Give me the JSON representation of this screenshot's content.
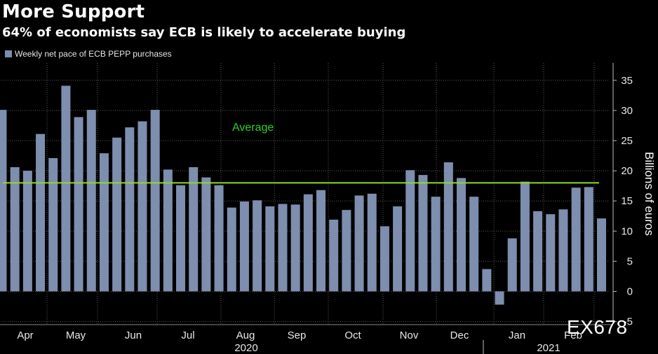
{
  "chart_data": {
    "type": "bar",
    "title": "More Support",
    "subtitle": "64% of economists say ECB is likely to accelerate buying",
    "legend": [
      "Weekly net pace of ECB PEPP purchases"
    ],
    "ylabel": "Billions of euros",
    "ylim": [
      -5,
      37
    ],
    "yticks": [
      "-5",
      "0",
      "5",
      "10",
      "15",
      "20",
      "25",
      "30",
      "35"
    ],
    "grid": "on",
    "legend_position": "top-left",
    "month_labels": [
      "Apr",
      "May",
      "Jun",
      "Jul",
      "Aug",
      "Sep",
      "Oct",
      "Nov",
      "Dec",
      "Jan",
      "Feb"
    ],
    "year_labels": [
      "2020",
      "2021"
    ],
    "values": [
      30.1,
      20.6,
      20.0,
      26.1,
      22.1,
      34.1,
      28.9,
      30.1,
      22.9,
      25.5,
      27.2,
      28.2,
      30.1,
      20.2,
      17.6,
      20.6,
      18.9,
      17.6,
      13.9,
      14.9,
      15.1,
      14.1,
      14.5,
      14.4,
      16.1,
      16.8,
      11.9,
      13.5,
      15.9,
      16.2,
      10.8,
      14.1,
      20.1,
      19.3,
      15.7,
      21.4,
      18.8,
      15.7,
      3.7,
      -2.2,
      8.8,
      18.2,
      13.3,
      12.8,
      13.6,
      17.2,
      17.3,
      12.1
    ],
    "reference_line": {
      "label": "Average",
      "value": 18
    },
    "colors": {
      "bar": "#7d8eae",
      "average": "#8edb26",
      "average_label": "#2bd12b",
      "grid": "#5a5a5a"
    }
  },
  "watermark": "EX678"
}
